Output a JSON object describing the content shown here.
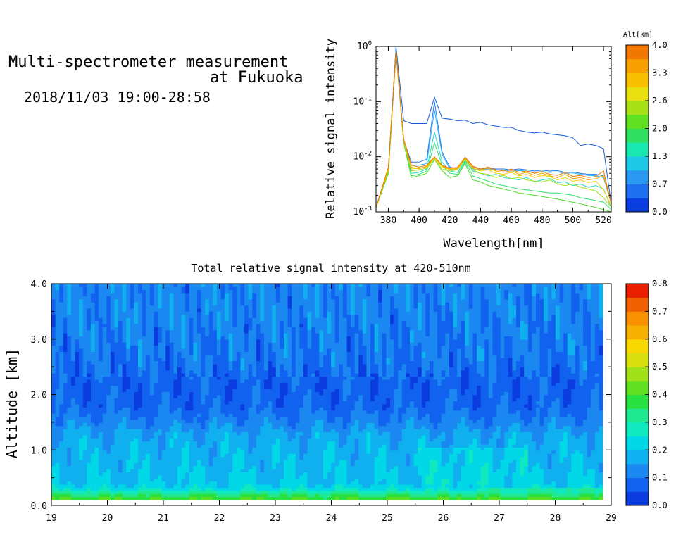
{
  "header": {
    "title_line1": "Multi-spectrometer measurement",
    "title_line2": "at Fukuoka",
    "datetime": "2018/11/03 19:00-28:58"
  },
  "chart_data": [
    {
      "type": "line",
      "title": "",
      "xlabel": "Wavelength[nm]",
      "ylabel": "Relative signal intensity",
      "xlim": [
        372,
        525
      ],
      "ylim": [
        0.001,
        1
      ],
      "yscale": "log",
      "xticks": [
        380,
        400,
        420,
        440,
        460,
        480,
        500,
        520
      ],
      "yticks": [
        "10^0",
        "10^-1",
        "10^-2",
        "10^-3"
      ],
      "x": [
        372,
        380,
        385,
        390,
        395,
        400,
        405,
        410,
        415,
        420,
        425,
        430,
        435,
        440,
        445,
        450,
        455,
        460,
        465,
        470,
        475,
        480,
        485,
        490,
        495,
        500,
        505,
        510,
        515,
        520,
        525
      ],
      "colorbar": {
        "title": "Alt[km]",
        "ticks": [
          "0.0",
          "0.7",
          "1.3",
          "2.0",
          "2.6",
          "3.3",
          "4.0"
        ],
        "min": 0,
        "max": 4,
        "colors": [
          "#0a3ee0",
          "#1e6ef0",
          "#2a98f0",
          "#20c8e8",
          "#18e8b0",
          "#30e060",
          "#60e020",
          "#a8e018",
          "#e8e010",
          "#f8c000",
          "#f8a000",
          "#f07800"
        ]
      },
      "series": [
        {
          "altitude": 0.2,
          "color": "#1458d8",
          "values": [
            0.0012,
            0.006,
            1.0,
            0.045,
            0.04,
            0.04,
            0.04,
            0.12,
            0.05,
            0.048,
            0.045,
            0.046,
            0.04,
            0.042,
            0.038,
            0.036,
            0.034,
            0.034,
            0.03,
            0.028,
            0.027,
            0.028,
            0.026,
            0.025,
            0.024,
            0.022,
            0.016,
            0.017,
            0.016,
            0.014,
            0.0014
          ]
        },
        {
          "altitude": 0.8,
          "color": "#1e78f0",
          "values": [
            0.0012,
            0.0055,
            0.9,
            0.02,
            0.008,
            0.008,
            0.009,
            0.1,
            0.012,
            0.0065,
            0.006,
            0.0095,
            0.0065,
            0.006,
            0.0062,
            0.006,
            0.006,
            0.0058,
            0.006,
            0.0058,
            0.0055,
            0.0057,
            0.0055,
            0.0056,
            0.0052,
            0.0053,
            0.005,
            0.0048,
            0.0048,
            0.0045,
            0.0015
          ]
        },
        {
          "altitude": 1.1,
          "color": "#2ab0f0",
          "values": [
            0.0012,
            0.0055,
            0.85,
            0.02,
            0.007,
            0.007,
            0.0075,
            0.07,
            0.011,
            0.006,
            0.0058,
            0.009,
            0.006,
            0.0058,
            0.006,
            0.0058,
            0.0057,
            0.0055,
            0.0056,
            0.0055,
            0.0052,
            0.0054,
            0.0052,
            0.0053,
            0.005,
            0.0051,
            0.0048,
            0.0046,
            0.0045,
            0.0042,
            0.0014
          ]
        },
        {
          "altitude": 1.4,
          "color": "#20d8c0",
          "values": [
            0.0012,
            0.005,
            0.8,
            0.018,
            0.005,
            0.0052,
            0.006,
            0.028,
            0.008,
            0.0055,
            0.0052,
            0.0085,
            0.0055,
            0.005,
            0.0045,
            0.0048,
            0.0042,
            0.004,
            0.0038,
            0.0042,
            0.0035,
            0.0038,
            0.004,
            0.0034,
            0.0035,
            0.003,
            0.0032,
            0.0028,
            0.003,
            0.0026,
            0.0012
          ]
        },
        {
          "altitude": 1.7,
          "color": "#30e070",
          "values": [
            0.0012,
            0.005,
            0.78,
            0.018,
            0.0045,
            0.0048,
            0.0055,
            0.018,
            0.007,
            0.005,
            0.0048,
            0.008,
            0.0045,
            0.004,
            0.0036,
            0.0032,
            0.003,
            0.0028,
            0.0026,
            0.0025,
            0.0024,
            0.0023,
            0.0022,
            0.0022,
            0.0021,
            0.002,
            0.0018,
            0.0017,
            0.0016,
            0.0015,
            0.0011
          ]
        },
        {
          "altitude": 2.0,
          "color": "#50dc28",
          "values": [
            0.0012,
            0.005,
            0.76,
            0.018,
            0.0042,
            0.0045,
            0.005,
            0.009,
            0.0055,
            0.0042,
            0.0045,
            0.0075,
            0.0038,
            0.0035,
            0.003,
            0.0028,
            0.0026,
            0.0024,
            0.0022,
            0.0021,
            0.002,
            0.0019,
            0.0018,
            0.0017,
            0.0016,
            0.0015,
            0.0014,
            0.0013,
            0.0012,
            0.0011,
            0.001
          ]
        },
        {
          "altitude": 2.5,
          "color": "#a8e018",
          "values": [
            0.0012,
            0.0055,
            0.76,
            0.019,
            0.0055,
            0.0058,
            0.0062,
            0.009,
            0.006,
            0.0055,
            0.0058,
            0.0088,
            0.0058,
            0.005,
            0.0048,
            0.0042,
            0.0046,
            0.004,
            0.0042,
            0.0038,
            0.0036,
            0.0035,
            0.0038,
            0.0032,
            0.003,
            0.0032,
            0.0028,
            0.0026,
            0.0024,
            0.0018,
            0.0012
          ]
        },
        {
          "altitude": 3.0,
          "color": "#f0d000",
          "values": [
            0.0012,
            0.0058,
            0.77,
            0.02,
            0.006,
            0.0062,
            0.0065,
            0.0095,
            0.0065,
            0.0058,
            0.006,
            0.0092,
            0.0062,
            0.0055,
            0.0058,
            0.005,
            0.0048,
            0.0052,
            0.0045,
            0.0048,
            0.0042,
            0.0046,
            0.0044,
            0.0038,
            0.0042,
            0.0036,
            0.0038,
            0.0034,
            0.0036,
            0.0025,
            0.0013
          ]
        },
        {
          "altitude": 3.5,
          "color": "#f8a800",
          "values": [
            0.0012,
            0.006,
            0.78,
            0.02,
            0.0065,
            0.006,
            0.0068,
            0.0098,
            0.0068,
            0.006,
            0.0062,
            0.0095,
            0.0065,
            0.0058,
            0.0062,
            0.0055,
            0.0052,
            0.0056,
            0.0048,
            0.0052,
            0.0046,
            0.005,
            0.0045,
            0.0042,
            0.0048,
            0.004,
            0.0042,
            0.0038,
            0.004,
            0.0045,
            0.0014
          ]
        },
        {
          "altitude": 3.9,
          "color": "#f07800",
          "values": [
            0.0012,
            0.0065,
            0.8,
            0.021,
            0.007,
            0.0065,
            0.007,
            0.01,
            0.007,
            0.0062,
            0.0064,
            0.0098,
            0.0068,
            0.006,
            0.0065,
            0.0058,
            0.0055,
            0.006,
            0.0052,
            0.0055,
            0.005,
            0.0054,
            0.0048,
            0.0046,
            0.0052,
            0.0044,
            0.0046,
            0.0042,
            0.0044,
            0.0055,
            0.0014
          ]
        }
      ]
    },
    {
      "type": "heatmap",
      "title": "Total relative signal intensity at 420-510nm",
      "xlabel": "",
      "ylabel": "Altitude [km]",
      "xlim": [
        19,
        29
      ],
      "ylim": [
        0,
        4
      ],
      "xticks": [
        "19",
        "20",
        "21",
        "22",
        "23",
        "24",
        "25",
        "26",
        "27",
        "28",
        "29"
      ],
      "yticks": [
        "0.0",
        "1.0",
        "2.0",
        "3.0",
        "4.0"
      ],
      "data_x_range": [
        19,
        28.85
      ],
      "colorbar": {
        "ticks": [
          "0.0",
          "0.1",
          "0.2",
          "0.3",
          "0.4",
          "0.5",
          "0.6",
          "0.7",
          "0.8"
        ],
        "min": 0,
        "max": 0.8,
        "colors": [
          "#0a3ce0",
          "#1262f0",
          "#1a88f0",
          "#10b0f0",
          "#00d8e8",
          "#10e8c0",
          "#20e890",
          "#28e040",
          "#60e020",
          "#a0e018",
          "#d8e010",
          "#f8d800",
          "#f8b000",
          "#f89000",
          "#f06000",
          "#e82000"
        ]
      },
      "altitude_profile": [
        {
          "alt": 0.12,
          "value": 0.4
        },
        {
          "alt": 0.22,
          "value": 0.32
        },
        {
          "alt": 0.3,
          "value": 0.24
        },
        {
          "alt": 0.4,
          "value": 0.2
        },
        {
          "alt": 0.7,
          "value": 0.19
        },
        {
          "alt": 1.0,
          "value": 0.18
        },
        {
          "alt": 1.3,
          "value": 0.16
        },
        {
          "alt": 1.5,
          "value": 0.12
        },
        {
          "alt": 1.8,
          "value": 0.08
        },
        {
          "alt": 2.2,
          "value": 0.07
        },
        {
          "alt": 2.6,
          "value": 0.1
        },
        {
          "alt": 3.0,
          "value": 0.11
        },
        {
          "alt": 3.5,
          "value": 0.12
        },
        {
          "alt": 3.95,
          "value": 0.12
        }
      ]
    }
  ]
}
